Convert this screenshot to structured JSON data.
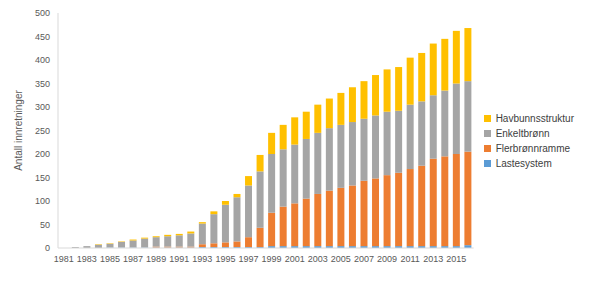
{
  "chart_data": {
    "type": "bar",
    "stacked": true,
    "y_label": "Antall innretninger",
    "categories": [
      "1981",
      null,
      "1983",
      null,
      "1985",
      null,
      "1987",
      null,
      "1989",
      null,
      "1991",
      null,
      "1993",
      null,
      "1995",
      null,
      "1997",
      null,
      "1999",
      null,
      "2001",
      null,
      "2003",
      null,
      "2005",
      null,
      "2007",
      null,
      "2009",
      null,
      "2011",
      null,
      "2013",
      null,
      "2015",
      null
    ],
    "series": [
      {
        "name": "Lastesystem",
        "color": "#5b9bd5",
        "values": [
          0,
          0,
          0,
          0,
          1,
          1,
          1,
          1,
          1,
          1,
          1,
          1,
          2,
          2,
          2,
          2,
          2,
          2,
          4,
          4,
          4,
          4,
          4,
          4,
          4,
          4,
          4,
          4,
          4,
          4,
          4,
          4,
          4,
          4,
          4,
          6
        ]
      },
      {
        "name": "Flerbrønnramme",
        "color": "#ed7d31",
        "values": [
          0,
          0,
          0,
          0,
          0,
          0,
          0,
          0,
          2,
          2,
          2,
          2,
          6,
          8,
          10,
          12,
          21,
          41,
          71,
          84,
          91,
          101,
          111,
          118,
          124,
          129,
          139,
          144,
          151,
          156,
          164,
          171,
          186,
          191,
          196,
          199
        ]
      },
      {
        "name": "Enkeltbrønn",
        "color": "#a5a5a5",
        "values": [
          0,
          2,
          4,
          7,
          8,
          12,
          15,
          19,
          20,
          22,
          24,
          28,
          44,
          62,
          80,
          94,
          110,
          120,
          125,
          122,
          125,
          127,
          130,
          133,
          134,
          135,
          132,
          134,
          135,
          132,
          137,
          137,
          135,
          140,
          150,
          150
        ]
      },
      {
        "name": "Havbunnsstruktur",
        "color": "#ffc000",
        "values": [
          0,
          0,
          0,
          1,
          1,
          1,
          2,
          2,
          2,
          3,
          3,
          4,
          3,
          6,
          8,
          7,
          20,
          35,
          45,
          52,
          58,
          58,
          60,
          63,
          68,
          74,
          80,
          86,
          90,
          93,
          100,
          103,
          110,
          110,
          112,
          113
        ]
      }
    ],
    "ylim": [
      0,
      500
    ],
    "yticks": [
      0,
      50,
      100,
      150,
      200,
      250,
      300,
      350,
      400,
      450,
      500
    ],
    "grid": false,
    "legend": "right"
  }
}
